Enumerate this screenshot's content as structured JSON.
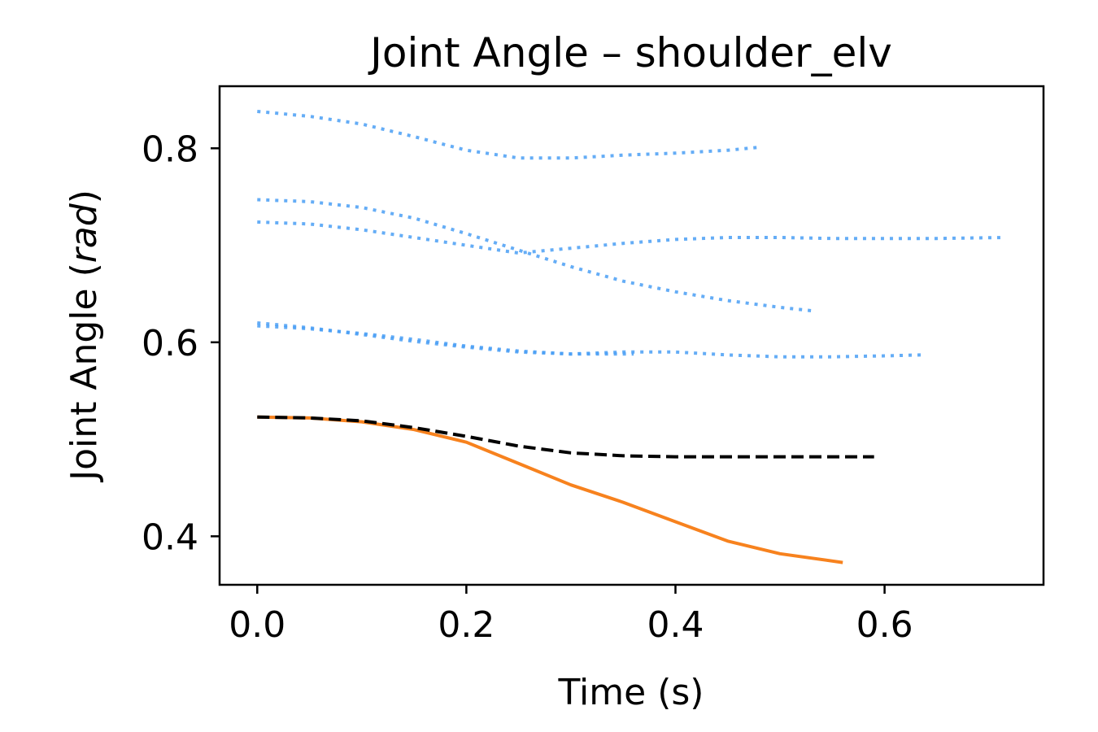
{
  "chart_data": {
    "type": "line",
    "title": "Joint Angle – shoulder_elv",
    "xlabel": "Time (s)",
    "ylabel_main": "Joint Angle (",
    "ylabel_unit": "rad",
    "ylabel_close": ")",
    "xlim": [
      -0.036,
      0.752
    ],
    "ylim": [
      0.35,
      0.864
    ],
    "xticks": [
      0.0,
      0.2,
      0.4,
      0.6
    ],
    "xtick_labels": [
      "0.0",
      "0.2",
      "0.4",
      "0.6"
    ],
    "yticks": [
      0.4,
      0.6,
      0.8
    ],
    "ytick_labels": [
      "0.4",
      "0.6",
      "0.8"
    ],
    "grid": false,
    "legend": "none",
    "series": [
      {
        "style": "dotted",
        "color": "#4a9ff5",
        "x": [
          0.0,
          0.05,
          0.1,
          0.15,
          0.2,
          0.25,
          0.3,
          0.35,
          0.4,
          0.45,
          0.48
        ],
        "y": [
          0.838,
          0.833,
          0.825,
          0.812,
          0.798,
          0.79,
          0.79,
          0.793,
          0.795,
          0.798,
          0.801
        ]
      },
      {
        "style": "dotted",
        "color": "#4a9ff5",
        "x": [
          0.0,
          0.05,
          0.1,
          0.15,
          0.2,
          0.25,
          0.3,
          0.35,
          0.4,
          0.45,
          0.5,
          0.535
        ],
        "y": [
          0.747,
          0.745,
          0.739,
          0.728,
          0.712,
          0.695,
          0.678,
          0.663,
          0.652,
          0.643,
          0.636,
          0.632
        ]
      },
      {
        "style": "dotted",
        "color": "#4a9ff5",
        "x": [
          0.0,
          0.05,
          0.1,
          0.15,
          0.2,
          0.25,
          0.3,
          0.35,
          0.4,
          0.45,
          0.5,
          0.55,
          0.6,
          0.65,
          0.715
        ],
        "y": [
          0.724,
          0.722,
          0.716,
          0.708,
          0.7,
          0.692,
          0.697,
          0.702,
          0.706,
          0.708,
          0.708,
          0.707,
          0.707,
          0.707,
          0.708
        ]
      },
      {
        "style": "dotted",
        "color": "#4a9ff5",
        "x": [
          0.0,
          0.05,
          0.1,
          0.15,
          0.2,
          0.25,
          0.3,
          0.35,
          0.4,
          0.45,
          0.5,
          0.55,
          0.6,
          0.635
        ],
        "y": [
          0.62,
          0.615,
          0.608,
          0.601,
          0.595,
          0.59,
          0.588,
          0.59,
          0.59,
          0.587,
          0.585,
          0.585,
          0.586,
          0.587
        ]
      },
      {
        "style": "dotted",
        "color": "#4a9ff5",
        "x": [
          0.0,
          0.05,
          0.1,
          0.15,
          0.2,
          0.25,
          0.3,
          0.36
        ],
        "y": [
          0.617,
          0.614,
          0.609,
          0.603,
          0.596,
          0.591,
          0.588,
          0.588
        ]
      },
      {
        "style": "solid",
        "color": "#f7821e",
        "x": [
          0.0,
          0.05,
          0.1,
          0.15,
          0.2,
          0.25,
          0.3,
          0.35,
          0.4,
          0.45,
          0.5,
          0.56
        ],
        "y": [
          0.523,
          0.522,
          0.518,
          0.51,
          0.497,
          0.475,
          0.453,
          0.435,
          0.415,
          0.395,
          0.382,
          0.373
        ]
      },
      {
        "style": "dashed",
        "color": "#000000",
        "x": [
          0.0,
          0.05,
          0.1,
          0.15,
          0.2,
          0.25,
          0.3,
          0.35,
          0.4,
          0.45,
          0.5,
          0.55,
          0.59
        ],
        "y": [
          0.523,
          0.522,
          0.519,
          0.512,
          0.503,
          0.493,
          0.486,
          0.483,
          0.482,
          0.482,
          0.482,
          0.482,
          0.482
        ]
      }
    ]
  }
}
